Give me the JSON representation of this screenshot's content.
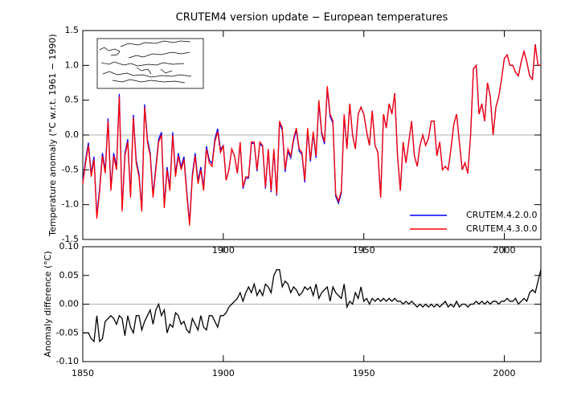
{
  "chart_data": [
    {
      "type": "line",
      "title": "CRUTEM4 version update − European temperatures",
      "ylabel": "Temperature anomaly (°C w.r.t. 1961 − 1990)",
      "x": [
        1850,
        1851,
        1852,
        1853,
        1854,
        1855,
        1856,
        1857,
        1858,
        1859,
        1860,
        1861,
        1862,
        1863,
        1864,
        1865,
        1866,
        1867,
        1868,
        1869,
        1870,
        1871,
        1872,
        1873,
        1874,
        1875,
        1876,
        1877,
        1878,
        1879,
        1880,
        1881,
        1882,
        1883,
        1884,
        1885,
        1886,
        1887,
        1888,
        1889,
        1890,
        1891,
        1892,
        1893,
        1894,
        1895,
        1896,
        1897,
        1898,
        1899,
        1900,
        1901,
        1902,
        1903,
        1904,
        1905,
        1906,
        1907,
        1908,
        1909,
        1910,
        1911,
        1912,
        1913,
        1914,
        1915,
        1916,
        1917,
        1918,
        1919,
        1920,
        1921,
        1922,
        1923,
        1924,
        1925,
        1926,
        1927,
        1928,
        1929,
        1930,
        1931,
        1932,
        1933,
        1934,
        1935,
        1936,
        1937,
        1938,
        1939,
        1940,
        1941,
        1942,
        1943,
        1944,
        1945,
        1946,
        1947,
        1948,
        1949,
        1950,
        1951,
        1952,
        1953,
        1954,
        1955,
        1956,
        1957,
        1958,
        1959,
        1960,
        1961,
        1962,
        1963,
        1964,
        1965,
        1966,
        1967,
        1968,
        1969,
        1970,
        1971,
        1972,
        1973,
        1974,
        1975,
        1976,
        1977,
        1978,
        1979,
        1980,
        1981,
        1982,
        1983,
        1984,
        1985,
        1986,
        1987,
        1988,
        1989,
        1990,
        1991,
        1992,
        1993,
        1994,
        1995,
        1996,
        1997,
        1998,
        1999,
        2000,
        2001,
        2002,
        2003,
        2004,
        2005,
        2006,
        2007,
        2008,
        2009,
        2010,
        2011,
        2012,
        2013
      ],
      "series": [
        {
          "name": "CRUTEM.4.2.0.0",
          "color": "#0000ff",
          "values": [
            -0.66,
            -0.36,
            -0.11,
            -0.56,
            -0.31,
            -1.16,
            -0.76,
            -0.26,
            -0.51,
            0.24,
            -0.76,
            -0.26,
            -0.46,
            0.59,
            -1.06,
            -0.26,
            -0.06,
            -0.86,
            0.29,
            -0.36,
            -0.56,
            -1.06,
            0.44,
            -0.06,
            -0.26,
            -0.86,
            -0.46,
            -0.06,
            0.04,
            -1.01,
            -0.46,
            -0.76,
            0.04,
            -0.56,
            -0.26,
            -0.46,
            -0.31,
            -0.81,
            -1.26,
            -0.56,
            -0.26,
            -0.66,
            -0.46,
            -0.76,
            -0.16,
            -0.36,
            -0.41,
            -0.06,
            0.09,
            -0.21,
            -0.15,
            -0.65,
            -0.5,
            -0.2,
            -0.3,
            -0.55,
            -0.12,
            -0.77,
            -0.62,
            -0.62,
            -0.12,
            -0.12,
            -0.52,
            -0.12,
            -0.17,
            -0.77,
            -0.22,
            -0.82,
            -0.22,
            -0.87,
            0.17,
            0.07,
            -0.53,
            -0.23,
            -0.33,
            -0.08,
            0.07,
            -0.23,
            -0.28,
            -0.68,
            0.07,
            -0.38,
            0.02,
            -0.33,
            0.47,
            0.02,
            -0.13,
            0.67,
            0.27,
            0.17,
            -0.88,
            -0.98,
            -0.83,
            0.27,
            -0.2,
            0.45,
            0.0,
            -0.2,
            0.3,
            0.4,
            0.3,
            0.05,
            -0.15,
            0.35,
            -0.15,
            -0.25,
            -0.9,
            0.3,
            0.1,
            0.45,
            0.3,
            0.6,
            -0.3,
            -0.8,
            -0.1,
            -0.4,
            -0.1,
            0.2,
            -0.3,
            -0.45,
            -0.15,
            0.0,
            -0.15,
            -0.05,
            0.2,
            0.2,
            -0.3,
            -0.1,
            -0.5,
            -0.45,
            -0.5,
            -0.2,
            0.15,
            0.3,
            -0.1,
            -0.5,
            -0.4,
            -0.55,
            0.0,
            0.95,
            1.0,
            0.3,
            0.45,
            0.2,
            0.75,
            0.55,
            0.0,
            0.4,
            0.55,
            0.8,
            1.1,
            1.15,
            1.0,
            1.0,
            0.9,
            0.85,
            1.05,
            1.2,
            1.05,
            0.85,
            0.8,
            1.3,
            1.0,
            1.0
          ]
        },
        {
          "name": "CRUTEM.4.3.0.0",
          "color": "#ff0000",
          "values": [
            -0.7,
            -0.4,
            -0.15,
            -0.6,
            -0.35,
            -1.2,
            -0.8,
            -0.3,
            -0.55,
            0.2,
            -0.8,
            -0.3,
            -0.5,
            0.55,
            -1.1,
            -0.3,
            -0.1,
            -0.9,
            0.25,
            -0.4,
            -0.6,
            -1.1,
            0.4,
            -0.1,
            -0.3,
            -0.9,
            -0.5,
            -0.1,
            0.0,
            -1.05,
            -0.5,
            -0.8,
            0.0,
            -0.6,
            -0.3,
            -0.5,
            -0.35,
            -0.85,
            -1.3,
            -0.6,
            -0.3,
            -0.7,
            -0.5,
            -0.8,
            -0.2,
            -0.4,
            -0.45,
            -0.1,
            0.05,
            -0.25,
            -0.15,
            -0.65,
            -0.5,
            -0.2,
            -0.3,
            -0.55,
            -0.1,
            -0.75,
            -0.6,
            -0.6,
            -0.1,
            -0.1,
            -0.5,
            -0.1,
            -0.15,
            -0.75,
            -0.2,
            -0.8,
            -0.2,
            -0.85,
            0.2,
            0.1,
            -0.5,
            -0.2,
            -0.3,
            -0.05,
            0.1,
            -0.2,
            -0.25,
            -0.65,
            0.1,
            -0.35,
            0.05,
            -0.3,
            0.5,
            0.05,
            -0.1,
            0.7,
            0.3,
            0.2,
            -0.85,
            -0.95,
            -0.8,
            0.3,
            -0.2,
            0.45,
            0.0,
            -0.2,
            0.3,
            0.4,
            0.3,
            0.05,
            -0.15,
            0.35,
            -0.15,
            -0.25,
            -0.9,
            0.3,
            0.1,
            0.45,
            0.3,
            0.6,
            -0.3,
            -0.8,
            -0.1,
            -0.4,
            -0.1,
            0.2,
            -0.3,
            -0.45,
            -0.15,
            0.0,
            -0.15,
            -0.05,
            0.2,
            0.2,
            -0.3,
            -0.1,
            -0.5,
            -0.45,
            -0.5,
            -0.2,
            0.15,
            0.3,
            -0.1,
            -0.5,
            -0.4,
            -0.55,
            0.0,
            0.95,
            1.0,
            0.3,
            0.45,
            0.2,
            0.75,
            0.55,
            0.0,
            0.4,
            0.55,
            0.8,
            1.1,
            1.15,
            1.0,
            1.0,
            0.9,
            0.85,
            1.05,
            1.2,
            1.05,
            0.85,
            0.8,
            1.3,
            1.0,
            1.0
          ]
        }
      ],
      "xlim": [
        1850,
        2013
      ],
      "xticks": [
        1900,
        1950,
        2000
      ],
      "ylim": [
        -1.5,
        1.5
      ],
      "yticks": [
        {
          "value": -1.5,
          "label": "-1.5"
        },
        {
          "value": -1.0,
          "label": "-1.0"
        },
        -0.5,
        {
          "value": 0.0,
          "label": "0.0"
        },
        0.5,
        {
          "value": 1.0,
          "label": "1.0"
        },
        1.5
      ],
      "zero_line": true,
      "legend": "lower right"
    },
    {
      "type": "line",
      "ylabel": "Anomaly difference (°C)",
      "x": [
        1850,
        1851,
        1852,
        1853,
        1854,
        1855,
        1856,
        1857,
        1858,
        1859,
        1860,
        1861,
        1862,
        1863,
        1864,
        1865,
        1866,
        1867,
        1868,
        1869,
        1870,
        1871,
        1872,
        1873,
        1874,
        1875,
        1876,
        1877,
        1878,
        1879,
        1880,
        1881,
        1882,
        1883,
        1884,
        1885,
        1886,
        1887,
        1888,
        1889,
        1890,
        1891,
        1892,
        1893,
        1894,
        1895,
        1896,
        1897,
        1898,
        1899,
        1900,
        1901,
        1902,
        1903,
        1904,
        1905,
        1906,
        1907,
        1908,
        1909,
        1910,
        1911,
        1912,
        1913,
        1914,
        1915,
        1916,
        1917,
        1918,
        1919,
        1920,
        1921,
        1922,
        1923,
        1924,
        1925,
        1926,
        1927,
        1928,
        1929,
        1930,
        1931,
        1932,
        1933,
        1934,
        1935,
        1936,
        1937,
        1938,
        1939,
        1940,
        1941,
        1942,
        1943,
        1944,
        1945,
        1946,
        1947,
        1948,
        1949,
        1950,
        1951,
        1952,
        1953,
        1954,
        1955,
        1956,
        1957,
        1958,
        1959,
        1960,
        1961,
        1962,
        1963,
        1964,
        1965,
        1966,
        1967,
        1968,
        1969,
        1970,
        1971,
        1972,
        1973,
        1974,
        1975,
        1976,
        1977,
        1978,
        1979,
        1980,
        1981,
        1982,
        1983,
        1984,
        1985,
        1986,
        1987,
        1988,
        1989,
        1990,
        1991,
        1992,
        1993,
        1994,
        1995,
        1996,
        1997,
        1998,
        1999,
        2000,
        2001,
        2002,
        2003,
        2004,
        2005,
        2006,
        2007,
        2008,
        2009,
        2010,
        2011,
        2012,
        2013
      ],
      "series": [
        {
          "color": "#000000",
          "values": [
            -0.05,
            -0.05,
            -0.05,
            -0.06,
            -0.065,
            -0.02,
            -0.065,
            -0.06,
            -0.03,
            -0.025,
            -0.02,
            -0.025,
            -0.035,
            -0.02,
            -0.025,
            -0.055,
            -0.02,
            -0.04,
            -0.05,
            -0.02,
            -0.02,
            -0.045,
            -0.03,
            -0.02,
            -0.01,
            -0.035,
            -0.01,
            0.0,
            -0.02,
            -0.01,
            -0.05,
            -0.035,
            -0.04,
            -0.015,
            -0.02,
            -0.035,
            -0.03,
            -0.045,
            -0.05,
            -0.025,
            -0.035,
            -0.045,
            -0.02,
            -0.04,
            -0.045,
            -0.02,
            -0.02,
            -0.03,
            -0.04,
            -0.02,
            -0.02,
            -0.015,
            -0.005,
            0.0,
            0.005,
            0.01,
            0.02,
            0.005,
            0.02,
            0.03,
            0.02,
            0.035,
            0.015,
            0.025,
            0.015,
            0.035,
            0.03,
            0.02,
            0.05,
            0.06,
            0.06,
            0.03,
            0.04,
            0.035,
            0.02,
            0.03,
            0.025,
            0.015,
            0.02,
            0.03,
            0.025,
            0.03,
            0.015,
            0.035,
            0.01,
            0.02,
            0.025,
            0.03,
            0.005,
            0.03,
            0.02,
            0.015,
            0.01,
            0.035,
            -0.005,
            0.005,
            0.0,
            0.02,
            0.01,
            0.03,
            0.005,
            0.01,
            0.0,
            0.01,
            0.005,
            0.01,
            0.005,
            0.01,
            0.005,
            0.01,
            0.005,
            0.01,
            0.005,
            0.005,
            0.0,
            0.005,
            0.0,
            0.005,
            0.0,
            -0.005,
            0.0,
            -0.005,
            0.0,
            -0.005,
            0.0,
            -0.005,
            0.0,
            -0.005,
            0.0,
            0.005,
            -0.005,
            0.0,
            -0.005,
            0.005,
            -0.005,
            0.0,
            0.0,
            -0.005,
            0.0,
            0.0,
            0.005,
            0.0,
            0.005,
            0.0,
            0.005,
            0.0,
            0.005,
            0.005,
            0.0,
            0.005,
            0.005,
            0.01,
            0.005,
            0.005,
            0.01,
            0.0,
            0.005,
            0.01,
            0.005,
            0.02,
            0.025,
            0.02,
            0.04,
            0.06
          ]
        }
      ],
      "xlim": [
        1850,
        2013
      ],
      "xticks": [
        1850,
        1900,
        1950,
        2000
      ],
      "ylim": [
        -0.1,
        0.1
      ],
      "yticks": [
        {
          "value": -0.1,
          "label": "-0.10"
        },
        -0.05,
        {
          "value": 0.0,
          "label": "0.00"
        },
        0.05,
        {
          "value": 0.1,
          "label": "0.10"
        }
      ],
      "zero_line": true
    }
  ]
}
